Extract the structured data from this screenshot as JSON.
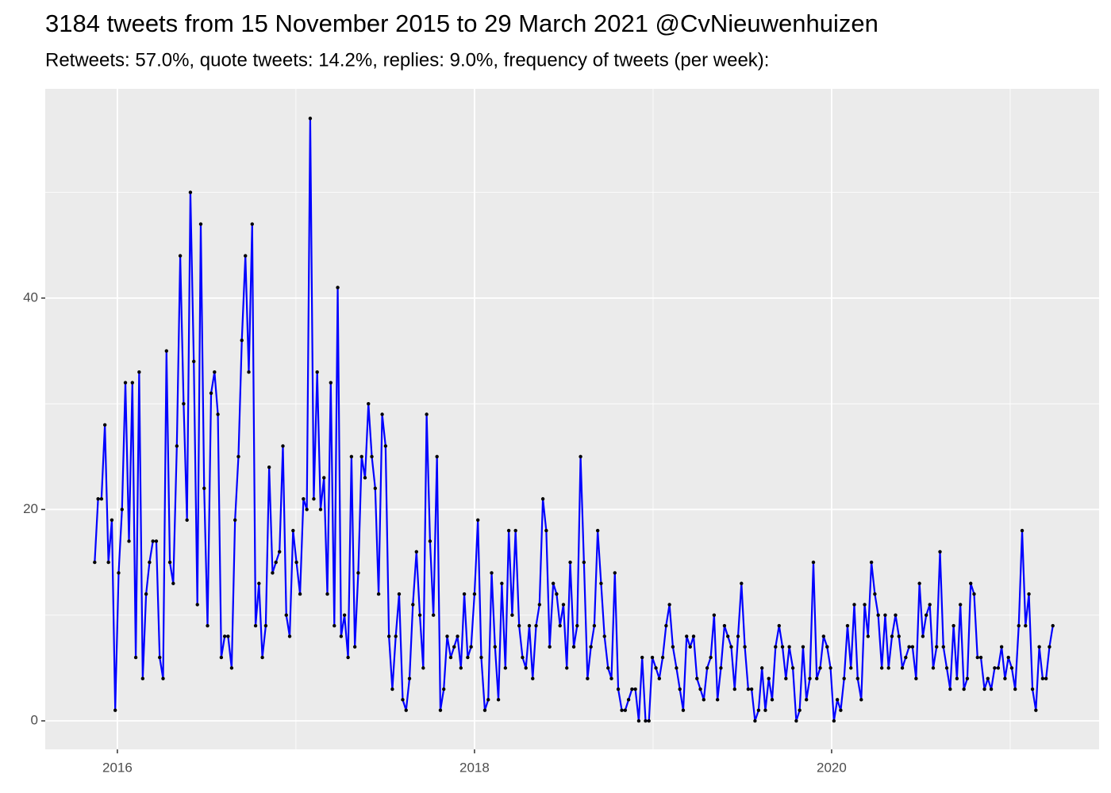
{
  "chart_data": {
    "type": "line",
    "title": "3184 tweets from 15 November 2015 to 29 March 2021 @CvNieuwenhuizen",
    "subtitle": "Retweets: 57.0%, quote tweets: 14.2%, replies: 9.0%, frequency of tweets (per week):",
    "x": [
      2015.873,
      2015.892,
      2015.911,
      2015.93,
      2015.95,
      2015.969,
      2015.988,
      2016.007,
      2016.026,
      2016.045,
      2016.065,
      2016.084,
      2016.103,
      2016.122,
      2016.142,
      2016.161,
      2016.18,
      2016.199,
      2016.218,
      2016.237,
      2016.256,
      2016.275,
      2016.294,
      2016.313,
      2016.333,
      2016.352,
      2016.371,
      2016.39,
      2016.409,
      2016.428,
      2016.448,
      2016.467,
      2016.486,
      2016.505,
      2016.525,
      2016.544,
      2016.563,
      2016.582,
      2016.601,
      2016.62,
      2016.64,
      2016.659,
      2016.678,
      2016.697,
      2016.717,
      2016.736,
      2016.755,
      2016.774,
      2016.793,
      2016.812,
      2016.831,
      2016.85,
      2016.869,
      2016.888,
      2016.908,
      2016.927,
      2016.946,
      2016.965,
      2016.984,
      2017.003,
      2017.023,
      2017.042,
      2017.061,
      2017.08,
      2017.1,
      2017.119,
      2017.138,
      2017.157,
      2017.176,
      2017.195,
      2017.215,
      2017.234,
      2017.253,
      2017.272,
      2017.292,
      2017.311,
      2017.33,
      2017.349,
      2017.368,
      2017.387,
      2017.406,
      2017.425,
      2017.444,
      2017.463,
      2017.483,
      2017.502,
      2017.521,
      2017.54,
      2017.559,
      2017.578,
      2017.598,
      2017.617,
      2017.636,
      2017.655,
      2017.675,
      2017.694,
      2017.713,
      2017.732,
      2017.751,
      2017.77,
      2017.79,
      2017.809,
      2017.828,
      2017.847,
      2017.867,
      2017.886,
      2017.905,
      2017.924,
      2017.943,
      2017.962,
      2017.981,
      2018.0,
      2018.019,
      2018.038,
      2018.058,
      2018.077,
      2018.096,
      2018.115,
      2018.134,
      2018.153,
      2018.173,
      2018.192,
      2018.211,
      2018.23,
      2018.25,
      2018.269,
      2018.288,
      2018.307,
      2018.326,
      2018.345,
      2018.364,
      2018.383,
      2018.402,
      2018.421,
      2018.441,
      2018.46,
      2018.479,
      2018.498,
      2018.517,
      2018.536,
      2018.556,
      2018.575,
      2018.594,
      2018.613,
      2018.633,
      2018.652,
      2018.671,
      2018.69,
      2018.709,
      2018.728,
      2018.748,
      2018.767,
      2018.786,
      2018.805,
      2018.825,
      2018.844,
      2018.863,
      2018.882,
      2018.901,
      2018.92,
      2018.939,
      2018.958,
      2018.977,
      2018.996,
      2019.016,
      2019.035,
      2019.054,
      2019.073,
      2019.092,
      2019.111,
      2019.131,
      2019.15,
      2019.169,
      2019.188,
      2019.208,
      2019.227,
      2019.246,
      2019.265,
      2019.284,
      2019.303,
      2019.323,
      2019.342,
      2019.361,
      2019.38,
      2019.4,
      2019.419,
      2019.438,
      2019.457,
      2019.476,
      2019.495,
      2019.514,
      2019.533,
      2019.552,
      2019.571,
      2019.591,
      2019.61,
      2019.629,
      2019.648,
      2019.667,
      2019.686,
      2019.706,
      2019.725,
      2019.744,
      2019.763,
      2019.783,
      2019.802,
      2019.821,
      2019.84,
      2019.859,
      2019.878,
      2019.898,
      2019.917,
      2019.936,
      2019.955,
      2019.975,
      2019.994,
      2020.013,
      2020.032,
      2020.051,
      2020.07,
      2020.089,
      2020.108,
      2020.127,
      2020.146,
      2020.166,
      2020.185,
      2020.204,
      2020.223,
      2020.242,
      2020.261,
      2020.281,
      2020.3,
      2020.319,
      2020.338,
      2020.358,
      2020.377,
      2020.396,
      2020.415,
      2020.434,
      2020.453,
      2020.473,
      2020.492,
      2020.511,
      2020.53,
      2020.55,
      2020.569,
      2020.588,
      2020.607,
      2020.626,
      2020.645,
      2020.664,
      2020.683,
      2020.702,
      2020.721,
      2020.741,
      2020.76,
      2020.779,
      2020.798,
      2020.817,
      2020.836,
      2020.856,
      2020.875,
      2020.894,
      2020.913,
      2020.933,
      2020.952,
      2020.971,
      2020.99,
      2021.009,
      2021.028,
      2021.048,
      2021.067,
      2021.086,
      2021.105,
      2021.125,
      2021.144,
      2021.163,
      2021.182,
      2021.201,
      2021.22,
      2021.239
    ],
    "values": [
      15,
      21,
      21,
      28,
      15,
      19,
      1,
      14,
      20,
      32,
      17,
      32,
      6,
      33,
      4,
      12,
      15,
      17,
      17,
      6,
      4,
      35,
      15,
      13,
      26,
      44,
      30,
      19,
      50,
      34,
      11,
      47,
      22,
      9,
      31,
      33,
      29,
      6,
      8,
      8,
      5,
      19,
      25,
      36,
      44,
      33,
      47,
      9,
      13,
      6,
      9,
      24,
      14,
      15,
      16,
      26,
      10,
      8,
      18,
      15,
      12,
      21,
      20,
      57,
      21,
      33,
      20,
      23,
      12,
      32,
      9,
      41,
      8,
      10,
      6,
      25,
      7,
      14,
      25,
      23,
      30,
      25,
      22,
      12,
      29,
      26,
      8,
      3,
      8,
      12,
      2,
      1,
      4,
      11,
      16,
      10,
      5,
      29,
      17,
      10,
      25,
      1,
      3,
      8,
      6,
      7,
      8,
      5,
      12,
      6,
      7,
      12,
      19,
      6,
      1,
      2,
      14,
      7,
      2,
      13,
      5,
      18,
      10,
      18,
      9,
      6,
      5,
      9,
      4,
      9,
      11,
      21,
      18,
      7,
      13,
      12,
      9,
      11,
      5,
      15,
      7,
      9,
      25,
      15,
      4,
      7,
      9,
      18,
      13,
      8,
      5,
      4,
      14,
      3,
      1,
      1,
      2,
      3,
      3,
      0,
      6,
      0,
      0,
      6,
      5,
      4,
      6,
      9,
      11,
      7,
      5,
      3,
      1,
      8,
      7,
      8,
      4,
      3,
      2,
      5,
      6,
      10,
      2,
      5,
      9,
      8,
      7,
      3,
      8,
      13,
      7,
      3,
      3,
      0,
      1,
      5,
      1,
      4,
      2,
      7,
      9,
      7,
      4,
      7,
      5,
      0,
      1,
      7,
      2,
      4,
      15,
      4,
      5,
      8,
      7,
      5,
      0,
      2,
      1,
      4,
      9,
      5,
      11,
      4,
      2,
      11,
      8,
      15,
      12,
      10,
      5,
      10,
      5,
      8,
      10,
      8,
      5,
      6,
      7,
      7,
      4,
      13,
      8,
      10,
      11,
      5,
      7,
      16,
      7,
      5,
      3,
      9,
      4,
      11,
      3,
      4,
      13,
      12,
      6,
      6,
      3,
      4,
      3,
      5,
      5,
      7,
      4,
      6,
      5,
      3,
      9,
      18,
      9,
      12,
      3,
      1,
      7,
      4,
      4,
      7,
      9
    ],
    "color": "#0000ff",
    "point_color": "#000000",
    "xlim": [
      2015.596,
      2021.498
    ],
    "xticks": [
      2016,
      2018,
      2020
    ],
    "xminor": [
      2017,
      2019,
      2021
    ],
    "ylim": [
      -2.7,
      59.8
    ],
    "yticks": [
      0,
      20,
      40
    ],
    "yminor": [
      10,
      30,
      50
    ],
    "grid": true
  }
}
